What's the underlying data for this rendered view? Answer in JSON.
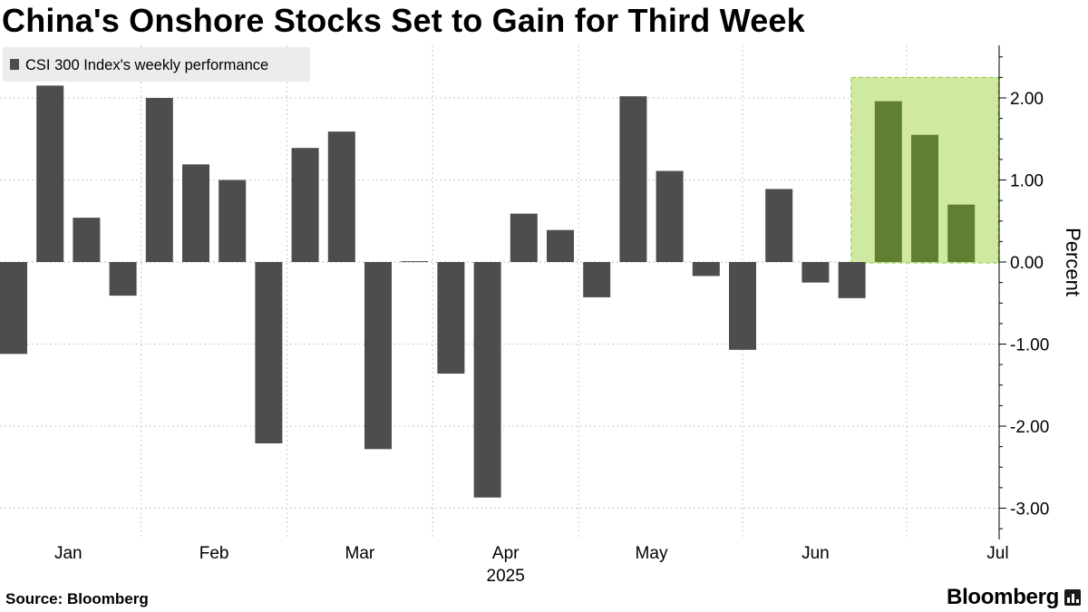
{
  "title": "China's Onshore Stocks Set to Gain for Third Week",
  "footer": {
    "source": "Source: Bloomberg",
    "brand": "Bloomberg"
  },
  "colors": {
    "bar": "#4d4d4d",
    "highlight_fill": "#cfeaa0",
    "highlight_border": "#8cc63f",
    "highlight_bar": "#5f7f31",
    "grid": "#c8c8c8",
    "legend_bg": "#ececec"
  },
  "chart_data": {
    "type": "bar",
    "legend": "CSI 300 Index's weekly performance",
    "ylabel": "Percent",
    "ylim": [
      -3.3,
      2.6
    ],
    "yticks": [
      -3,
      -2,
      -1,
      0,
      1,
      2
    ],
    "ytick_labels": [
      "-3.00",
      "-2.00",
      "-1.00",
      "0.00",
      "1.00",
      "2.00"
    ],
    "x_labels": [
      "Jan",
      "Feb",
      "Mar",
      "Apr",
      "May",
      "Jun",
      "Jul"
    ],
    "x_label_weeks": [
      1.5,
      5.5,
      9.5,
      13.5,
      17.5,
      22,
      27
    ],
    "x_grid_weeks": [
      3.5,
      7.5,
      11.5,
      15.5,
      20,
      24.5
    ],
    "year_label": "2025",
    "year_label_week": 13.5,
    "values": [
      -1.12,
      2.15,
      0.54,
      -0.41,
      2.0,
      1.19,
      1.0,
      -2.21,
      1.39,
      1.59,
      -2.28,
      0.01,
      -1.36,
      -2.87,
      0.59,
      0.39,
      -0.43,
      2.02,
      1.11,
      -0.17,
      -1.07,
      0.89,
      -0.25,
      -0.44,
      1.96,
      1.55,
      0.7
    ],
    "highlight_weeks": [
      24,
      25,
      26
    ]
  }
}
